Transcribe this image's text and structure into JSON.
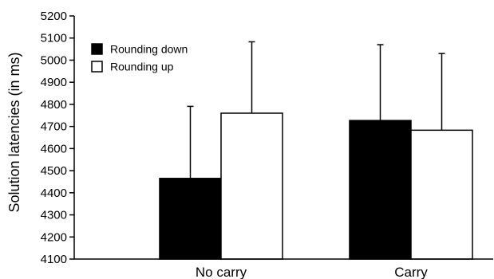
{
  "chart_data": {
    "type": "bar",
    "title": "",
    "xlabel": "",
    "ylabel": "Solution latencies (in ms)",
    "ylim": [
      4100,
      5200
    ],
    "yticks": [
      "4100",
      "4200",
      "4300",
      "4400",
      "4500",
      "4600",
      "4700",
      "4800",
      "4900",
      "5000",
      "5100",
      "5200"
    ],
    "categories": [
      "No carry",
      "Carry"
    ],
    "series": [
      {
        "name": "Rounding down",
        "color": "#000000",
        "values": [
          4465,
          4727
        ],
        "errors": [
          326,
          343
        ]
      },
      {
        "name": "Rounding up",
        "color": "#ffffff",
        "values": [
          4760,
          4683
        ],
        "errors": [
          323,
          347
        ]
      }
    ],
    "error_bars": "upper only",
    "grid": false,
    "legend_position": "top-left"
  }
}
